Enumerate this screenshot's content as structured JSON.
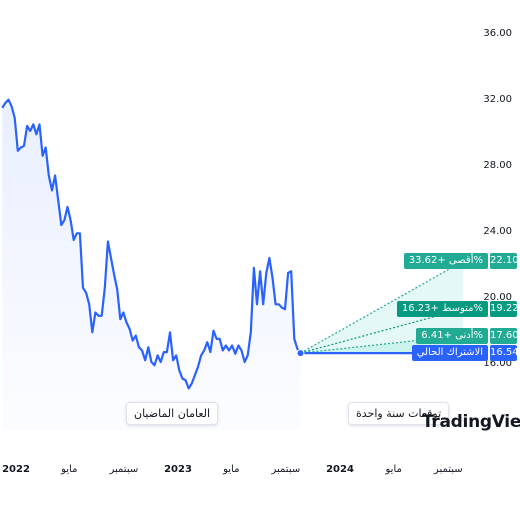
{
  "chart_data": {
    "type": "line",
    "ylim": [
      16,
      36
    ],
    "y_ticks": [
      "36.00",
      "32.00",
      "28.00",
      "24.00",
      "20.00",
      "16.00"
    ],
    "x_ticks": [
      "2022",
      "مايو",
      "سبتمبر",
      "2023",
      "مايو",
      "سبتمبر",
      "2024",
      "مايو",
      "سبتمبر"
    ],
    "history": [
      {
        "x": "2021-12-01",
        "y": 31.4
      },
      {
        "x": "2021-12-08",
        "y": 31.7
      },
      {
        "x": "2021-12-15",
        "y": 31.9
      },
      {
        "x": "2021-12-22",
        "y": 31.5
      },
      {
        "x": "2021-12-29",
        "y": 30.8
      },
      {
        "x": "2022-01-05",
        "y": 28.8
      },
      {
        "x": "2022-01-12",
        "y": 29.0
      },
      {
        "x": "2022-01-19",
        "y": 29.1
      },
      {
        "x": "2022-01-26",
        "y": 30.3
      },
      {
        "x": "2022-02-02",
        "y": 30.0
      },
      {
        "x": "2022-02-09",
        "y": 30.4
      },
      {
        "x": "2022-02-16",
        "y": 29.8
      },
      {
        "x": "2022-02-23",
        "y": 30.4
      },
      {
        "x": "2022-03-02",
        "y": 28.5
      },
      {
        "x": "2022-03-09",
        "y": 29.0
      },
      {
        "x": "2022-03-16",
        "y": 27.3
      },
      {
        "x": "2022-03-23",
        "y": 26.4
      },
      {
        "x": "2022-03-30",
        "y": 27.3
      },
      {
        "x": "2022-04-06",
        "y": 25.8
      },
      {
        "x": "2022-04-13",
        "y": 24.3
      },
      {
        "x": "2022-04-20",
        "y": 24.6
      },
      {
        "x": "2022-04-27",
        "y": 25.4
      },
      {
        "x": "2022-05-04",
        "y": 24.6
      },
      {
        "x": "2022-05-11",
        "y": 23.4
      },
      {
        "x": "2022-05-18",
        "y": 23.8
      },
      {
        "x": "2022-05-25",
        "y": 23.8
      },
      {
        "x": "2022-06-01",
        "y": 20.5
      },
      {
        "x": "2022-06-08",
        "y": 20.2
      },
      {
        "x": "2022-06-15",
        "y": 19.5
      },
      {
        "x": "2022-06-22",
        "y": 17.8
      },
      {
        "x": "2022-06-29",
        "y": 19.0
      },
      {
        "x": "2022-07-06",
        "y": 18.8
      },
      {
        "x": "2022-07-13",
        "y": 18.8
      },
      {
        "x": "2022-07-20",
        "y": 20.5
      },
      {
        "x": "2022-07-27",
        "y": 23.3
      },
      {
        "x": "2022-08-03",
        "y": 22.3
      },
      {
        "x": "2022-08-10",
        "y": 21.3
      },
      {
        "x": "2022-08-17",
        "y": 20.4
      },
      {
        "x": "2022-08-24",
        "y": 18.6
      },
      {
        "x": "2022-08-31",
        "y": 19.0
      },
      {
        "x": "2022-09-07",
        "y": 18.4
      },
      {
        "x": "2022-09-14",
        "y": 18.0
      },
      {
        "x": "2022-09-21",
        "y": 17.3
      },
      {
        "x": "2022-09-28",
        "y": 17.6
      },
      {
        "x": "2022-10-05",
        "y": 16.9
      },
      {
        "x": "2022-10-12",
        "y": 16.7
      },
      {
        "x": "2022-10-19",
        "y": 16.1
      },
      {
        "x": "2022-10-26",
        "y": 16.9
      },
      {
        "x": "2022-11-02",
        "y": 16.0
      },
      {
        "x": "2022-11-09",
        "y": 15.8
      },
      {
        "x": "2022-11-16",
        "y": 16.4
      },
      {
        "x": "2022-11-23",
        "y": 16.0
      },
      {
        "x": "2022-11-30",
        "y": 16.6
      },
      {
        "x": "2022-12-07",
        "y": 16.6
      },
      {
        "x": "2022-12-14",
        "y": 17.8
      },
      {
        "x": "2022-12-21",
        "y": 16.1
      },
      {
        "x": "2022-12-28",
        "y": 16.4
      },
      {
        "x": "2023-01-04",
        "y": 15.5
      },
      {
        "x": "2023-01-11",
        "y": 15.0
      },
      {
        "x": "2023-01-18",
        "y": 14.9
      },
      {
        "x": "2023-01-25",
        "y": 14.4
      },
      {
        "x": "2023-02-01",
        "y": 14.7
      },
      {
        "x": "2023-02-08",
        "y": 15.2
      },
      {
        "x": "2023-02-15",
        "y": 15.7
      },
      {
        "x": "2023-02-22",
        "y": 16.4
      },
      {
        "x": "2023-03-01",
        "y": 16.7
      },
      {
        "x": "2023-03-08",
        "y": 17.2
      },
      {
        "x": "2023-03-15",
        "y": 16.6
      },
      {
        "x": "2023-03-22",
        "y": 17.9
      },
      {
        "x": "2023-03-29",
        "y": 17.4
      },
      {
        "x": "2023-04-05",
        "y": 17.4
      },
      {
        "x": "2023-04-12",
        "y": 16.7
      },
      {
        "x": "2023-04-19",
        "y": 17.0
      },
      {
        "x": "2023-04-26",
        "y": 16.7
      },
      {
        "x": "2023-05-03",
        "y": 17.0
      },
      {
        "x": "2023-05-10",
        "y": 16.5
      },
      {
        "x": "2023-05-17",
        "y": 17.0
      },
      {
        "x": "2023-05-24",
        "y": 16.7
      },
      {
        "x": "2023-05-31",
        "y": 16.0
      },
      {
        "x": "2023-06-07",
        "y": 16.4
      },
      {
        "x": "2023-06-14",
        "y": 17.8
      },
      {
        "x": "2023-06-21",
        "y": 21.7
      },
      {
        "x": "2023-06-28",
        "y": 19.5
      },
      {
        "x": "2023-07-05",
        "y": 21.5
      },
      {
        "x": "2023-07-12",
        "y": 19.5
      },
      {
        "x": "2023-07-19",
        "y": 21.4
      },
      {
        "x": "2023-07-26",
        "y": 22.3
      },
      {
        "x": "2023-08-02",
        "y": 21.1
      },
      {
        "x": "2023-08-09",
        "y": 19.5
      },
      {
        "x": "2023-08-16",
        "y": 19.5
      },
      {
        "x": "2023-08-23",
        "y": 19.3
      },
      {
        "x": "2023-08-30",
        "y": 19.2
      },
      {
        "x": "2023-09-06",
        "y": 21.4
      },
      {
        "x": "2023-09-13",
        "y": 21.5
      },
      {
        "x": "2023-09-20",
        "y": 17.4
      },
      {
        "x": "2023-09-27",
        "y": 16.8
      },
      {
        "x": "2023-10-04",
        "y": 16.54
      }
    ],
    "current": {
      "label": "الاشتراك الحالي",
      "value": 16.54,
      "value_text": "16.54"
    },
    "projections": [
      {
        "key": "high",
        "label": "أقصى +33.62%",
        "value": 22.1,
        "value_text": "22.10",
        "color": "#22ab94"
      },
      {
        "key": "avg",
        "label": "متوسط +16.23%",
        "value": 19.22,
        "value_text": "19.22",
        "color": "#089981"
      },
      {
        "key": "low",
        "label": "أدنى +6.41%",
        "value": 17.6,
        "value_text": "17.60",
        "color": "#22ab94"
      }
    ],
    "projection_end": "2024-10-04"
  },
  "labels": {
    "past_period": "العامان الماضيان",
    "forecast_period": "توقعات سنة واحدة",
    "watermark": "TradingView"
  },
  "colors": {
    "line": "#2962ff",
    "fill": "#e9efff",
    "current_tag": "#2962ff",
    "projection_fill": "#b2ebe1"
  }
}
